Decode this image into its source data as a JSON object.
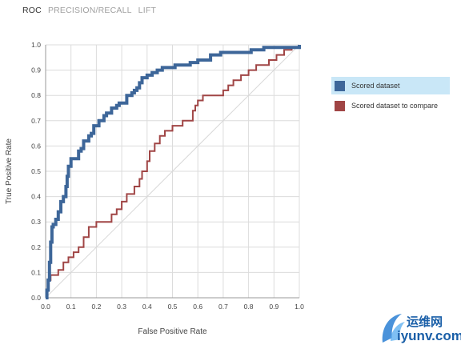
{
  "tabs": [
    {
      "label": "ROC",
      "active": true
    },
    {
      "label": "PRECISION/RECALL",
      "active": false
    },
    {
      "label": "LIFT",
      "active": false
    }
  ],
  "legend": [
    {
      "label": "Scored dataset",
      "color": "#3d6699",
      "selected": true
    },
    {
      "label": "Scored dataset to compare",
      "color": "#a04545",
      "selected": false
    }
  ],
  "watermark": {
    "line1": "运维网",
    "line2": "iyunv.com"
  },
  "chart_data": {
    "type": "line",
    "title": "",
    "xlabel": "False Positive Rate",
    "ylabel": "True Positive Rate",
    "xlim": [
      0,
      1
    ],
    "ylim": [
      0,
      1
    ],
    "x_ticks": [
      "0.0",
      "0.1",
      "0.2",
      "0.3",
      "0.4",
      "0.5",
      "0.6",
      "0.7",
      "0.8",
      "0.9",
      "1.0"
    ],
    "y_ticks": [
      "0.0",
      "0.1",
      "0.2",
      "0.3",
      "0.4",
      "0.5",
      "0.6",
      "0.7",
      "0.8",
      "0.9",
      "1.0"
    ],
    "grid": true,
    "diagonal_reference": true,
    "series": [
      {
        "name": "Scored dataset",
        "color": "#3d6699",
        "x": [
          0,
          0.005,
          0.005,
          0.01,
          0.01,
          0.015,
          0.015,
          0.02,
          0.02,
          0.025,
          0.025,
          0.03,
          0.03,
          0.04,
          0.04,
          0.05,
          0.05,
          0.06,
          0.06,
          0.07,
          0.07,
          0.08,
          0.08,
          0.085,
          0.085,
          0.09,
          0.09,
          0.1,
          0.1,
          0.13,
          0.13,
          0.14,
          0.14,
          0.15,
          0.15,
          0.17,
          0.17,
          0.18,
          0.18,
          0.19,
          0.19,
          0.21,
          0.21,
          0.23,
          0.23,
          0.24,
          0.24,
          0.26,
          0.26,
          0.28,
          0.28,
          0.29,
          0.29,
          0.32,
          0.32,
          0.34,
          0.34,
          0.35,
          0.35,
          0.36,
          0.36,
          0.37,
          0.37,
          0.38,
          0.38,
          0.4,
          0.4,
          0.42,
          0.42,
          0.44,
          0.44,
          0.46,
          0.46,
          0.51,
          0.51,
          0.57,
          0.57,
          0.6,
          0.6,
          0.65,
          0.65,
          0.69,
          0.69,
          0.79,
          0.79,
          0.81,
          0.81,
          0.86,
          0.86,
          1.0,
          1.0
        ],
        "y": [
          0,
          0,
          0.03,
          0.03,
          0.07,
          0.07,
          0.14,
          0.14,
          0.22,
          0.22,
          0.28,
          0.28,
          0.29,
          0.29,
          0.31,
          0.31,
          0.34,
          0.34,
          0.38,
          0.38,
          0.4,
          0.4,
          0.44,
          0.44,
          0.48,
          0.48,
          0.52,
          0.52,
          0.55,
          0.55,
          0.58,
          0.58,
          0.59,
          0.59,
          0.62,
          0.62,
          0.64,
          0.64,
          0.65,
          0.65,
          0.68,
          0.68,
          0.7,
          0.7,
          0.72,
          0.72,
          0.73,
          0.73,
          0.75,
          0.75,
          0.76,
          0.76,
          0.77,
          0.77,
          0.8,
          0.8,
          0.81,
          0.81,
          0.82,
          0.82,
          0.83,
          0.83,
          0.85,
          0.85,
          0.87,
          0.87,
          0.88,
          0.88,
          0.89,
          0.89,
          0.9,
          0.9,
          0.91,
          0.91,
          0.92,
          0.92,
          0.93,
          0.93,
          0.94,
          0.94,
          0.96,
          0.96,
          0.97,
          0.97,
          0.97,
          0.97,
          0.98,
          0.98,
          0.99,
          0.99,
          1.0
        ]
      },
      {
        "name": "Scored dataset to compare",
        "color": "#a04545",
        "x": [
          0,
          0.005,
          0.005,
          0.01,
          0.01,
          0.02,
          0.02,
          0.05,
          0.05,
          0.07,
          0.07,
          0.09,
          0.09,
          0.11,
          0.11,
          0.13,
          0.13,
          0.15,
          0.15,
          0.17,
          0.17,
          0.2,
          0.2,
          0.26,
          0.26,
          0.28,
          0.28,
          0.3,
          0.3,
          0.32,
          0.32,
          0.35,
          0.35,
          0.37,
          0.37,
          0.38,
          0.38,
          0.4,
          0.4,
          0.41,
          0.41,
          0.43,
          0.43,
          0.45,
          0.45,
          0.47,
          0.47,
          0.5,
          0.5,
          0.54,
          0.54,
          0.58,
          0.58,
          0.59,
          0.59,
          0.6,
          0.6,
          0.62,
          0.62,
          0.64,
          0.64,
          0.7,
          0.7,
          0.72,
          0.72,
          0.74,
          0.74,
          0.77,
          0.77,
          0.8,
          0.8,
          0.83,
          0.83,
          0.88,
          0.88,
          0.91,
          0.91,
          0.94,
          0.94,
          0.97,
          0.97,
          1.0,
          1.0
        ],
        "y": [
          0,
          0,
          0.03,
          0.03,
          0.07,
          0.07,
          0.09,
          0.09,
          0.11,
          0.11,
          0.14,
          0.14,
          0.16,
          0.16,
          0.18,
          0.18,
          0.2,
          0.2,
          0.24,
          0.24,
          0.28,
          0.28,
          0.3,
          0.3,
          0.33,
          0.33,
          0.35,
          0.35,
          0.38,
          0.38,
          0.41,
          0.41,
          0.44,
          0.44,
          0.47,
          0.47,
          0.5,
          0.5,
          0.54,
          0.54,
          0.58,
          0.58,
          0.61,
          0.61,
          0.64,
          0.64,
          0.66,
          0.66,
          0.68,
          0.68,
          0.7,
          0.7,
          0.74,
          0.74,
          0.76,
          0.76,
          0.78,
          0.78,
          0.8,
          0.8,
          0.8,
          0.8,
          0.82,
          0.82,
          0.84,
          0.84,
          0.86,
          0.86,
          0.88,
          0.88,
          0.9,
          0.9,
          0.92,
          0.92,
          0.94,
          0.94,
          0.96,
          0.96,
          0.98,
          0.98,
          0.99,
          0.99,
          1.0
        ]
      }
    ]
  }
}
